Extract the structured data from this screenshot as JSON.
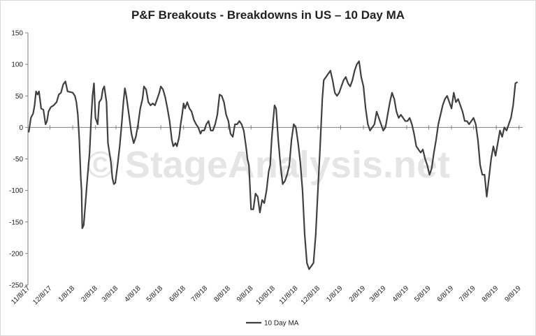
{
  "watermark": "© StageAnalysis.net",
  "chart_data": {
    "type": "line",
    "title": "P&F Breakouts - Breakdowns in US – 10 Day MA",
    "xlabel": "",
    "ylabel": "",
    "ylim": [
      -250,
      150
    ],
    "yticks": [
      -250,
      -200,
      -150,
      -100,
      -50,
      0,
      50,
      100,
      150
    ],
    "xlim": [
      "2017-11-08",
      "2019-09-13"
    ],
    "xtick_labels": [
      "11/8/17",
      "12/8/17",
      "1/8/18",
      "2/8/18",
      "3/8/18",
      "4/8/18",
      "5/8/18",
      "6/8/18",
      "7/8/18",
      "8/8/18",
      "9/8/18",
      "10/8/18",
      "11/8/18",
      "12/8/18",
      "1/8/19",
      "2/8/19",
      "3/8/19",
      "4/8/19",
      "5/8/19",
      "6/8/19",
      "7/8/19",
      "8/8/19",
      "9/8/19"
    ],
    "grid": false,
    "legend": "bottom",
    "series": [
      {
        "name": "10 Day MA",
        "color": "#404040",
        "points": [
          [
            "2017-11-09",
            -8
          ],
          [
            "2017-11-12",
            15
          ],
          [
            "2017-11-15",
            22
          ],
          [
            "2017-11-17",
            35
          ],
          [
            "2017-11-19",
            57
          ],
          [
            "2017-11-21",
            52
          ],
          [
            "2017-11-23",
            57
          ],
          [
            "2017-11-26",
            30
          ],
          [
            "2017-11-29",
            28
          ],
          [
            "2017-12-02",
            5
          ],
          [
            "2017-12-04",
            10
          ],
          [
            "2017-12-06",
            25
          ],
          [
            "2017-12-09",
            32
          ],
          [
            "2017-12-13",
            35
          ],
          [
            "2017-12-17",
            40
          ],
          [
            "2017-12-20",
            52
          ],
          [
            "2017-12-23",
            55
          ],
          [
            "2017-12-26",
            68
          ],
          [
            "2017-12-29",
            73
          ],
          [
            "2018-01-01",
            57
          ],
          [
            "2018-01-05",
            56
          ],
          [
            "2018-01-08",
            55
          ],
          [
            "2018-01-11",
            50
          ],
          [
            "2018-01-13",
            40
          ],
          [
            "2018-01-15",
            20
          ],
          [
            "2018-01-17",
            -20
          ],
          [
            "2018-01-19",
            -80
          ],
          [
            "2018-01-20",
            -100
          ],
          [
            "2018-01-21",
            -160
          ],
          [
            "2018-01-23",
            -155
          ],
          [
            "2018-01-26",
            -110
          ],
          [
            "2018-01-28",
            -80
          ],
          [
            "2018-01-31",
            -40
          ],
          [
            "2018-02-02",
            10
          ],
          [
            "2018-02-04",
            50
          ],
          [
            "2018-02-06",
            70
          ],
          [
            "2018-02-08",
            15
          ],
          [
            "2018-02-11",
            5
          ],
          [
            "2018-02-13",
            40
          ],
          [
            "2018-02-16",
            45
          ],
          [
            "2018-02-18",
            60
          ],
          [
            "2018-02-20",
            65
          ],
          [
            "2018-02-23",
            40
          ],
          [
            "2018-02-25",
            -25
          ],
          [
            "2018-02-27",
            -40
          ],
          [
            "2018-03-01",
            -55
          ],
          [
            "2018-03-03",
            -80
          ],
          [
            "2018-03-05",
            -90
          ],
          [
            "2018-03-07",
            -88
          ],
          [
            "2018-03-10",
            -60
          ],
          [
            "2018-03-13",
            -30
          ],
          [
            "2018-03-16",
            10
          ],
          [
            "2018-03-18",
            40
          ],
          [
            "2018-03-20",
            62
          ],
          [
            "2018-03-22",
            50
          ],
          [
            "2018-03-25",
            25
          ],
          [
            "2018-03-29",
            -10
          ],
          [
            "2018-04-01",
            -25
          ],
          [
            "2018-04-04",
            -15
          ],
          [
            "2018-04-07",
            5
          ],
          [
            "2018-04-10",
            30
          ],
          [
            "2018-04-13",
            45
          ],
          [
            "2018-04-15",
            65
          ],
          [
            "2018-04-18",
            60
          ],
          [
            "2018-04-21",
            40
          ],
          [
            "2018-04-24",
            35
          ],
          [
            "2018-04-27",
            38
          ],
          [
            "2018-04-30",
            35
          ],
          [
            "2018-05-03",
            45
          ],
          [
            "2018-05-06",
            55
          ],
          [
            "2018-05-08",
            65
          ],
          [
            "2018-05-11",
            60
          ],
          [
            "2018-05-14",
            48
          ],
          [
            "2018-05-17",
            30
          ],
          [
            "2018-05-20",
            10
          ],
          [
            "2018-05-23",
            -20
          ],
          [
            "2018-05-25",
            -30
          ],
          [
            "2018-05-28",
            -25
          ],
          [
            "2018-05-30",
            -30
          ],
          [
            "2018-06-02",
            -15
          ],
          [
            "2018-06-04",
            5
          ],
          [
            "2018-06-06",
            20
          ],
          [
            "2018-06-08",
            38
          ],
          [
            "2018-06-10",
            30
          ],
          [
            "2018-06-13",
            40
          ],
          [
            "2018-06-16",
            30
          ],
          [
            "2018-06-19",
            25
          ],
          [
            "2018-06-22",
            12
          ],
          [
            "2018-06-25",
            5
          ],
          [
            "2018-06-28",
            0
          ],
          [
            "2018-07-01",
            -10
          ],
          [
            "2018-07-03",
            -5
          ],
          [
            "2018-07-06",
            -5
          ],
          [
            "2018-07-09",
            5
          ],
          [
            "2018-07-12",
            10
          ],
          [
            "2018-07-15",
            -5
          ],
          [
            "2018-07-18",
            -5
          ],
          [
            "2018-07-21",
            5
          ],
          [
            "2018-07-24",
            20
          ],
          [
            "2018-07-27",
            52
          ],
          [
            "2018-07-30",
            50
          ],
          [
            "2018-08-02",
            40
          ],
          [
            "2018-08-05",
            20
          ],
          [
            "2018-08-08",
            10
          ],
          [
            "2018-08-11",
            -10
          ],
          [
            "2018-08-14",
            -15
          ],
          [
            "2018-08-17",
            5
          ],
          [
            "2018-08-20",
            5
          ],
          [
            "2018-08-23",
            10
          ],
          [
            "2018-08-26",
            5
          ],
          [
            "2018-08-29",
            -5
          ],
          [
            "2018-09-01",
            -30
          ],
          [
            "2018-09-03",
            -50
          ],
          [
            "2018-09-05",
            -60
          ],
          [
            "2018-09-08",
            -130
          ],
          [
            "2018-09-11",
            -130
          ],
          [
            "2018-09-14",
            -105
          ],
          [
            "2018-09-17",
            -110
          ],
          [
            "2018-09-20",
            -135
          ],
          [
            "2018-09-23",
            -115
          ],
          [
            "2018-09-26",
            -120
          ],
          [
            "2018-09-29",
            -100
          ],
          [
            "2018-10-02",
            -70
          ],
          [
            "2018-10-04",
            -60
          ],
          [
            "2018-10-06",
            -20
          ],
          [
            "2018-10-08",
            10
          ],
          [
            "2018-10-10",
            35
          ],
          [
            "2018-10-12",
            30
          ],
          [
            "2018-10-15",
            -20
          ],
          [
            "2018-10-18",
            -60
          ],
          [
            "2018-10-21",
            -90
          ],
          [
            "2018-10-24",
            -85
          ],
          [
            "2018-10-27",
            -75
          ],
          [
            "2018-10-30",
            -60
          ],
          [
            "2018-11-02",
            -20
          ],
          [
            "2018-11-05",
            5
          ],
          [
            "2018-11-08",
            0
          ],
          [
            "2018-11-11",
            -25
          ],
          [
            "2018-11-14",
            -55
          ],
          [
            "2018-11-17",
            -100
          ],
          [
            "2018-11-20",
            -170
          ],
          [
            "2018-11-23",
            -215
          ],
          [
            "2018-11-26",
            -225
          ],
          [
            "2018-11-29",
            -220
          ],
          [
            "2018-12-02",
            -215
          ],
          [
            "2018-12-05",
            -170
          ],
          [
            "2018-12-08",
            -100
          ],
          [
            "2018-12-11",
            -30
          ],
          [
            "2018-12-14",
            45
          ],
          [
            "2018-12-16",
            75
          ],
          [
            "2018-12-19",
            80
          ],
          [
            "2018-12-22",
            85
          ],
          [
            "2018-12-25",
            90
          ],
          [
            "2018-12-28",
            75
          ],
          [
            "2018-12-31",
            55
          ],
          [
            "2019-01-03",
            50
          ],
          [
            "2019-01-06",
            55
          ],
          [
            "2019-01-09",
            65
          ],
          [
            "2019-01-12",
            75
          ],
          [
            "2019-01-15",
            80
          ],
          [
            "2019-01-18",
            70
          ],
          [
            "2019-01-21",
            65
          ],
          [
            "2019-01-24",
            75
          ],
          [
            "2019-01-27",
            90
          ],
          [
            "2019-01-30",
            100
          ],
          [
            "2019-02-02",
            105
          ],
          [
            "2019-02-05",
            80
          ],
          [
            "2019-02-08",
            65
          ],
          [
            "2019-02-11",
            30
          ],
          [
            "2019-02-14",
            5
          ],
          [
            "2019-02-17",
            -5
          ],
          [
            "2019-02-20",
            0
          ],
          [
            "2019-02-23",
            5
          ],
          [
            "2019-02-26",
            25
          ],
          [
            "2019-03-01",
            15
          ],
          [
            "2019-03-04",
            5
          ],
          [
            "2019-03-07",
            -5
          ],
          [
            "2019-03-10",
            0
          ],
          [
            "2019-03-13",
            20
          ],
          [
            "2019-03-16",
            40
          ],
          [
            "2019-03-19",
            55
          ],
          [
            "2019-03-22",
            45
          ],
          [
            "2019-03-25",
            25
          ],
          [
            "2019-03-28",
            15
          ],
          [
            "2019-03-31",
            20
          ],
          [
            "2019-04-03",
            15
          ],
          [
            "2019-04-06",
            10
          ],
          [
            "2019-04-09",
            10
          ],
          [
            "2019-04-12",
            15
          ],
          [
            "2019-04-15",
            5
          ],
          [
            "2019-04-18",
            -10
          ],
          [
            "2019-04-21",
            -30
          ],
          [
            "2019-04-24",
            -35
          ],
          [
            "2019-04-27",
            -40
          ],
          [
            "2019-04-30",
            -35
          ],
          [
            "2019-05-03",
            -50
          ],
          [
            "2019-05-06",
            -60
          ],
          [
            "2019-05-09",
            -75
          ],
          [
            "2019-05-12",
            -65
          ],
          [
            "2019-05-15",
            -40
          ],
          [
            "2019-05-18",
            -20
          ],
          [
            "2019-05-21",
            5
          ],
          [
            "2019-05-24",
            20
          ],
          [
            "2019-05-27",
            35
          ],
          [
            "2019-05-30",
            45
          ],
          [
            "2019-06-02",
            50
          ],
          [
            "2019-06-05",
            40
          ],
          [
            "2019-06-08",
            30
          ],
          [
            "2019-06-11",
            55
          ],
          [
            "2019-06-14",
            40
          ],
          [
            "2019-06-17",
            45
          ],
          [
            "2019-06-20",
            35
          ],
          [
            "2019-06-23",
            25
          ],
          [
            "2019-06-26",
            10
          ],
          [
            "2019-06-29",
            10
          ],
          [
            "2019-07-02",
            5
          ],
          [
            "2019-07-05",
            10
          ],
          [
            "2019-07-08",
            15
          ],
          [
            "2019-07-11",
            5
          ],
          [
            "2019-07-14",
            -20
          ],
          [
            "2019-07-17",
            -60
          ],
          [
            "2019-07-20",
            -75
          ],
          [
            "2019-07-23",
            -75
          ],
          [
            "2019-07-26",
            -110
          ],
          [
            "2019-07-29",
            -80
          ],
          [
            "2019-08-01",
            -50
          ],
          [
            "2019-08-04",
            -30
          ],
          [
            "2019-08-07",
            -45
          ],
          [
            "2019-08-10",
            -25
          ],
          [
            "2019-08-13",
            -5
          ],
          [
            "2019-08-16",
            -15
          ],
          [
            "2019-08-19",
            0
          ],
          [
            "2019-08-22",
            -5
          ],
          [
            "2019-08-25",
            5
          ],
          [
            "2019-08-28",
            15
          ],
          [
            "2019-08-31",
            35
          ],
          [
            "2019-09-03",
            70
          ],
          [
            "2019-09-06",
            72
          ]
        ]
      }
    ]
  }
}
